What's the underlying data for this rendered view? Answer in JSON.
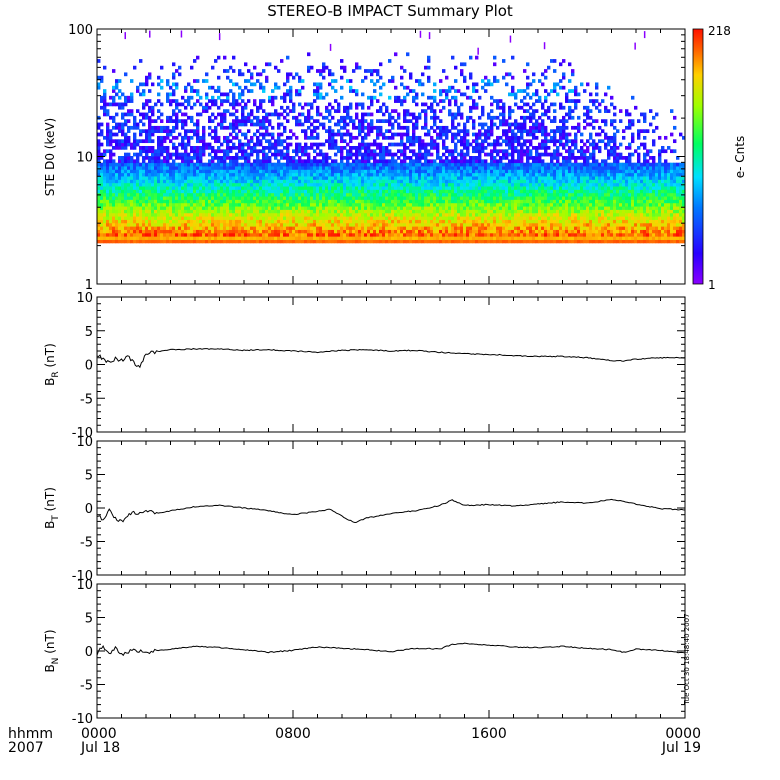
{
  "chart_data": [
    {
      "type": "heatmap",
      "title": "STEREO-B IMPACT Summary Plot",
      "ylabel": "STE D0 (keV)",
      "y_scale": "log",
      "ylim": [
        1,
        100
      ],
      "y_ticks": [
        "1",
        "10",
        "100"
      ],
      "colorbar": {
        "label": "e- Cnts",
        "min": 1,
        "max": 218,
        "min_label": "1",
        "max_label": "218"
      },
      "description_values": {
        "energy_floor_keV": 2.1,
        "energy_flux_max_keV": 100,
        "discrete_channel_keV": 35
      }
    },
    {
      "type": "line",
      "ylabel": "BR (nT)",
      "ylabel_main": "B",
      "ylabel_sub": "R",
      "ylabel_unit": "(nT)",
      "ylim": [
        -10,
        10
      ],
      "y_ticks": [
        "10",
        "5",
        "0",
        "-5",
        "-10"
      ],
      "x_hours": [
        0,
        0.25,
        0.5,
        0.75,
        1.0,
        1.25,
        1.5,
        1.75,
        2.0,
        2.5,
        3,
        4,
        5,
        6,
        7,
        8,
        9,
        10,
        11,
        12,
        13,
        14,
        15,
        16,
        17,
        18,
        19,
        20,
        21,
        21.5,
        22,
        23,
        24
      ],
      "values": [
        1.5,
        0.8,
        0.2,
        0.9,
        0.6,
        1.2,
        0.3,
        -0.4,
        1.6,
        1.9,
        2.2,
        2.3,
        2.3,
        2.1,
        2.2,
        2.0,
        1.8,
        2.1,
        2.2,
        2.0,
        2.1,
        1.8,
        1.6,
        1.5,
        1.3,
        1.2,
        1.2,
        1.0,
        0.6,
        0.5,
        0.8,
        1.0,
        1.0
      ]
    },
    {
      "type": "line",
      "ylabel": "BT (nT)",
      "ylabel_main": "B",
      "ylabel_sub": "T",
      "ylabel_unit": "(nT)",
      "ylim": [
        -10,
        10
      ],
      "y_ticks": [
        "10",
        "5",
        "0",
        "-5",
        "-10"
      ],
      "x_hours": [
        0,
        0.25,
        0.5,
        0.75,
        1.0,
        1.25,
        1.5,
        1.75,
        2.0,
        2.5,
        3,
        4,
        5,
        6,
        7,
        8,
        9,
        9.5,
        10,
        10.5,
        11,
        12,
        13,
        14,
        14.5,
        15,
        16,
        17,
        18,
        19,
        20,
        21,
        22,
        23,
        24
      ],
      "values": [
        -1.0,
        -1.8,
        -0.4,
        -1.5,
        -2.0,
        -1.2,
        -0.6,
        -0.9,
        -0.5,
        -0.8,
        -0.4,
        0.2,
        0.4,
        0.0,
        -0.4,
        -1.0,
        -0.5,
        -0.2,
        -1.2,
        -2.2,
        -1.5,
        -0.8,
        -0.4,
        0.4,
        1.2,
        0.4,
        0.5,
        0.3,
        0.6,
        0.9,
        0.7,
        1.3,
        0.6,
        -0.1,
        -0.3
      ]
    },
    {
      "type": "line",
      "ylabel": "BN (nT)",
      "ylabel_main": "B",
      "ylabel_sub": "N",
      "ylabel_unit": "(nT)",
      "ylim": [
        -10,
        10
      ],
      "y_ticks": [
        "10",
        "5",
        "0",
        "-5",
        "-10"
      ],
      "x_hours": [
        0,
        0.25,
        0.5,
        0.75,
        1.0,
        1.5,
        2,
        2.5,
        3,
        4,
        5,
        6,
        7,
        8,
        9,
        10,
        11,
        12,
        13,
        14,
        14.5,
        15,
        16,
        17,
        18,
        19,
        20,
        21,
        21.5,
        22,
        23,
        24
      ],
      "values": [
        -0.4,
        0.8,
        -0.6,
        0.6,
        -0.5,
        0.2,
        -0.3,
        0.1,
        0.3,
        0.7,
        0.5,
        0.2,
        -0.2,
        0.1,
        0.6,
        0.4,
        0.2,
        -0.1,
        0.4,
        0.3,
        1.0,
        1.1,
        0.9,
        0.6,
        0.5,
        0.7,
        0.4,
        0.2,
        -0.2,
        0.3,
        0.1,
        -0.3
      ]
    }
  ],
  "xaxis": {
    "row1_label": "hhmm",
    "row2_label": "2007",
    "ticks": [
      {
        "hour": 0,
        "label": "0000",
        "date": "Jul 18"
      },
      {
        "hour": 8,
        "label": "0800",
        "date": ""
      },
      {
        "hour": 16,
        "label": "1600",
        "date": ""
      },
      {
        "hour": 24,
        "label": "0000",
        "date": "Jul 19"
      }
    ],
    "xlim_hours": [
      0,
      24
    ]
  },
  "timestamp": "Tue Oct 30 18:48:40 2007",
  "colors": {
    "line": "#000000",
    "frame": "#000000",
    "background": "#ffffff"
  }
}
